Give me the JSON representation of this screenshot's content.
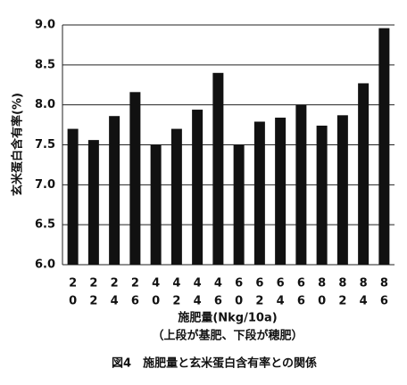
{
  "chart_data": {
    "type": "bar",
    "y_label": "玄米蛋白含有率(%)",
    "x_label": "施肥量(Nkg/10a)",
    "x_sublabel": "（上段が基肥、下段が穂肥）",
    "caption": "図4　施肥量と玄米蛋白含有率との関係",
    "categories": [
      [
        "2",
        "0"
      ],
      [
        "2",
        "2"
      ],
      [
        "2",
        "4"
      ],
      [
        "2",
        "6"
      ],
      [
        "4",
        "0"
      ],
      [
        "4",
        "2"
      ],
      [
        "4",
        "4"
      ],
      [
        "4",
        "6"
      ],
      [
        "6",
        "0"
      ],
      [
        "6",
        "2"
      ],
      [
        "6",
        "4"
      ],
      [
        "6",
        "6"
      ],
      [
        "8",
        "0"
      ],
      [
        "8",
        "2"
      ],
      [
        "8",
        "4"
      ],
      [
        "8",
        "6"
      ]
    ],
    "values": [
      7.7,
      7.56,
      7.86,
      8.16,
      7.5,
      7.7,
      7.94,
      8.4,
      7.5,
      7.79,
      7.84,
      8.0,
      7.74,
      7.87,
      8.27,
      8.96
    ],
    "color": "#111111",
    "ylim": [
      6,
      9
    ],
    "yticks": [
      {
        "value": 6,
        "label": "6.0"
      },
      {
        "value": 6.5,
        "label": "6.5"
      },
      {
        "value": 7,
        "label": "7.0"
      },
      {
        "value": 7.5,
        "label": "7.5"
      },
      {
        "value": 8,
        "label": "8.0"
      },
      {
        "value": 8.5,
        "label": "8.5"
      },
      {
        "value": 9,
        "label": "9.0"
      }
    ],
    "grid": true
  }
}
